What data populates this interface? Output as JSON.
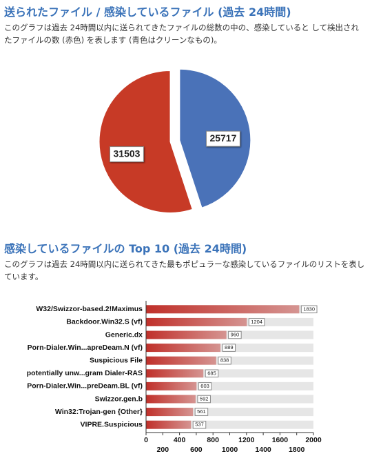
{
  "chart_data": [
    {
      "type": "pie",
      "title": "送られたファイル / 感染しているファイル (過去 24時間)",
      "subtitle": "このグラフは過去 24時間以内に送られてきたファイルの総数の中の、感染していると して検出されたファイルの数 (赤色) を表します (青色はクリーンなもの)。",
      "values": [
        25717,
        31503
      ],
      "colors": [
        "#4a72b8",
        "#c73a26"
      ]
    },
    {
      "type": "hbar",
      "title": "感染しているファイルの Top 10 (過去 24時間)",
      "subtitle": "このグラフは過去 24時間以内に送られてきた最もポピュラーな感染しているファイルのリストを表しています。",
      "categories": [
        "W32/Swizzor-based.2!Maximus",
        "Backdoor.Win32.S (vf)",
        "Generic.dx",
        "Porn-Dialer.Win...apreDeam.N (vf)",
        "Suspicious File",
        "potentially unw...gram Dialer-RAS",
        "Porn-Dialer.Win...preDeam.BL (vf)",
        "Swizzor.gen.b",
        "Win32:Trojan-gen {Other}",
        "VIPRE.Suspicious"
      ],
      "values": [
        1830,
        1204,
        960,
        889,
        838,
        685,
        603,
        592,
        561,
        537
      ],
      "color": "#c0302a",
      "xlim": [
        0,
        2000
      ],
      "xticks": [
        0,
        200,
        400,
        600,
        800,
        1000,
        1200,
        1400,
        1600,
        1800,
        2000
      ]
    }
  ]
}
